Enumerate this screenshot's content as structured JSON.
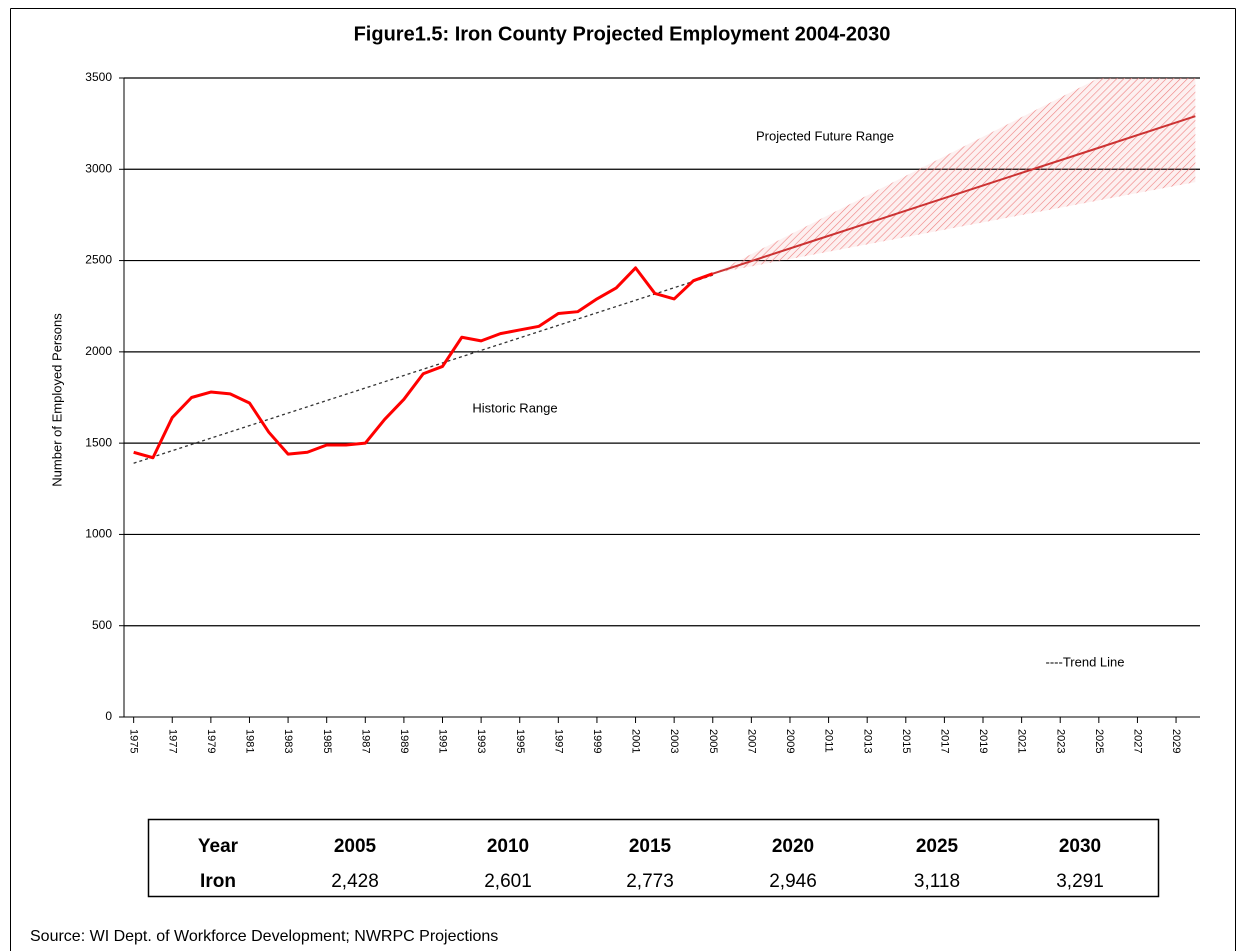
{
  "chart_data": {
    "type": "line",
    "title": "Figure1.5: Iron County Projected Employment 2004-2030",
    "y_label": "Number of Employed Persons",
    "xlim": [
      1974.5,
      2030.5
    ],
    "xticks": [
      1975,
      1977,
      1979,
      1981,
      1983,
      1985,
      1987,
      1989,
      1991,
      1993,
      1995,
      1997,
      1999,
      2001,
      2003,
      2005,
      2007,
      2009,
      2011,
      2013,
      2015,
      2017,
      2019,
      2021,
      2023,
      2025,
      2027,
      2029
    ],
    "ylim": [
      0,
      3500
    ],
    "yticks": [
      0,
      500,
      1000,
      1500,
      2000,
      2500,
      3000,
      3500
    ],
    "grid": true,
    "series": [
      {
        "color": "#ff0000",
        "x": [
          1975,
          1976,
          1977,
          1978,
          1979,
          1980,
          1981,
          1982,
          1983,
          1984,
          1985,
          1986,
          1987,
          1988,
          1989,
          1990,
          1991,
          1992,
          1993,
          1994,
          1995,
          1996,
          1997,
          1998,
          1999,
          2000,
          2001,
          2002,
          2003,
          2004,
          2005
        ],
        "values": [
          1450,
          1420,
          1640,
          1750,
          1780,
          1770,
          1720,
          1560,
          1440,
          1450,
          1490,
          1490,
          1500,
          1630,
          1740,
          1880,
          1920,
          2080,
          2060,
          2100,
          2120,
          2140,
          2210,
          2220,
          2290,
          2350,
          2460,
          2320,
          2290,
          2390,
          2428
        ]
      },
      {
        "color": "#cc3333",
        "x": [
          2005,
          2010,
          2015,
          2020,
          2025,
          2030
        ],
        "values": [
          2428,
          2601,
          2773,
          2946,
          3118,
          3291
        ]
      }
    ],
    "trend": {
      "color": "#333333",
      "x": [
        1975,
        2005
      ],
      "values": [
        1390,
        2420
      ]
    },
    "range": {
      "color": "#f08080",
      "x": [
        2005,
        2025,
        2030
      ],
      "upper": [
        2428,
        3500,
        3500
      ],
      "lower": [
        2428,
        2830,
        2930
      ]
    },
    "annotations": [
      "Projected Future Range",
      "Historic Range",
      "----Trend Line"
    ]
  },
  "table": {
    "header": [
      "Year",
      "2005",
      "2010",
      "2015",
      "2020",
      "2025",
      "2030"
    ],
    "rows": [
      [
        "Iron",
        "2,428",
        "2,601",
        "2,773",
        "2,946",
        "3,118",
        "3,291"
      ]
    ]
  },
  "source": "Source: WI Dept. of Workforce Development; NWRPC Projections"
}
